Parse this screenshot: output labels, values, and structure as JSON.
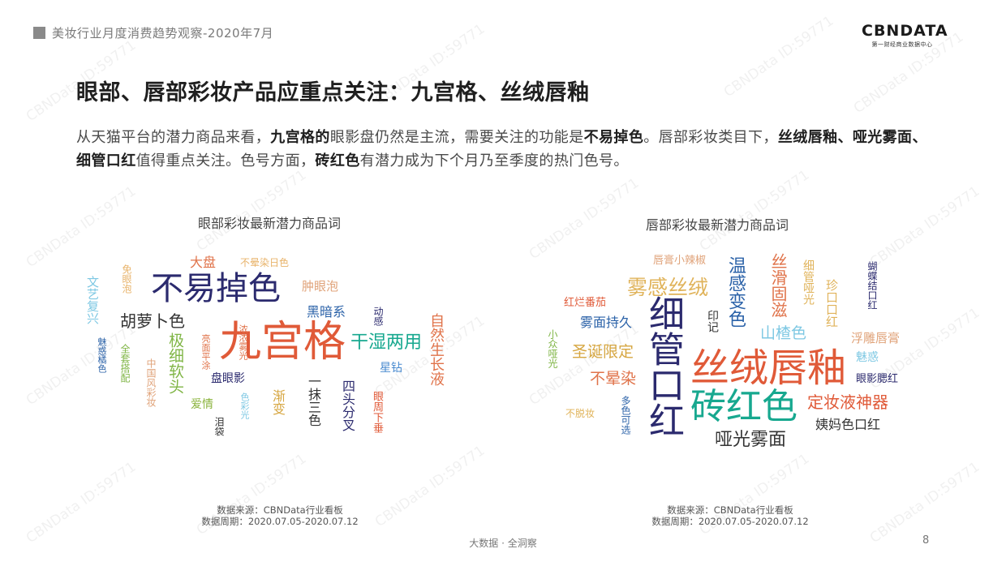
{
  "header": {
    "report_title": "美妆行业月度消费趋势观察-2020年7月",
    "logo_main": "CBNDATA",
    "logo_sub": "第一财经商业数据中心"
  },
  "main": {
    "title": "眼部、唇部彩妆产品应重点关注：九宫格、丝绒唇釉",
    "paragraph": [
      {
        "t": "从天猫平台的潜力商品来看，",
        "b": false
      },
      {
        "t": "九宫格的",
        "b": true
      },
      {
        "t": "眼影盘仍然是主流，需要关注的功能是",
        "b": false
      },
      {
        "t": "不易掉色",
        "b": true
      },
      {
        "t": "。唇部彩妆类目下，",
        "b": false
      },
      {
        "t": "丝绒唇釉、哑光雾面、细管口红",
        "b": true
      },
      {
        "t": "值得重点关注。色号方面，",
        "b": false
      },
      {
        "t": "砖红色",
        "b": true
      },
      {
        "t": "有潜力成为下个月乃至季度的热门色号。",
        "b": false
      }
    ]
  },
  "eye_cloud": {
    "title": "眼部彩妆最新潜力商品词",
    "words": [
      "不易掉色",
      "九宫格",
      "干湿两用",
      "胡萝卜色",
      "大盘",
      "不晕染日色",
      "肿眼泡",
      "黑暗系",
      "动感",
      "自然生长液",
      "星钻",
      "盘眼影",
      "爱情",
      "极细软头",
      "四头分叉",
      "一抹三色",
      "渐变",
      "眼周下垂",
      "泪袋",
      "文艺复兴",
      "免眼泡",
      "全套搭配",
      "中国风彩妆",
      "亮面平涂",
      "浓浓雾光",
      "魅惑橘色",
      "色彩光"
    ],
    "source": "数据来源：CBNData行业看板",
    "period": "数据周期：2020.07.05-2020.07.12"
  },
  "lip_cloud": {
    "title": "唇部彩妆最新潜力商品词",
    "words": [
      "丝绒唇釉",
      "细管口红",
      "砖红色",
      "雾感丝绒",
      "温感变色",
      "哑光雾面",
      "定妆液神器",
      "姨妈色口红",
      "山楂色",
      "浮雕唇膏",
      "魅惑",
      "眼影腮红",
      "蝴蝶结口红",
      "不晕染",
      "圣诞限定",
      "雾面持久",
      "红烂番茄",
      "唇膏小辣椒",
      "印记",
      "小众哑光",
      "不脱妆",
      "多色可选",
      "丝滑固滋",
      "细管哑光",
      "珍口口红"
    ],
    "source": "数据来源：CBNData行业看板",
    "period": "数据周期：2020.07.05-2020.07.12"
  },
  "footer": {
    "slogan": "大数据 · 全洞察",
    "page_number": "8"
  },
  "watermark": "CBNData ID:59771",
  "colors": {
    "dark_navy": "#2b2a6e",
    "orange": "#e05a38",
    "teal": "#17a88f",
    "bold_text": "#1f1f1f"
  }
}
